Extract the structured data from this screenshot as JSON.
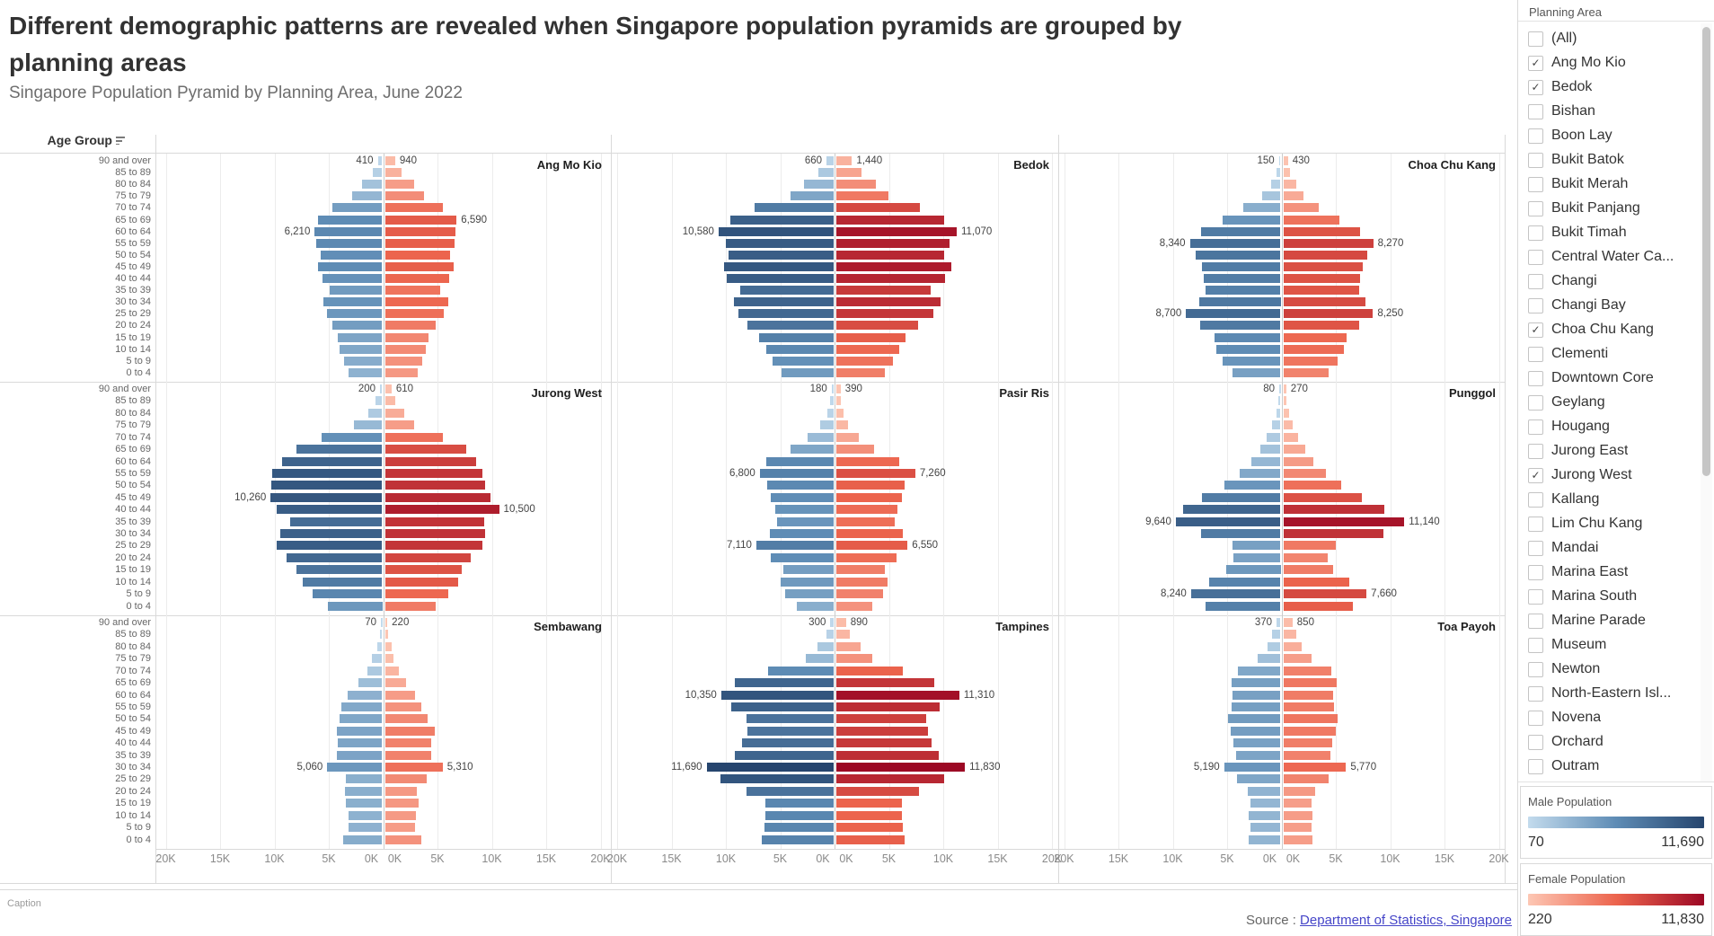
{
  "header": {
    "title": "Different demographic patterns are revealed when Singapore population pyramids are grouped by planning areas",
    "subtitle": "Singapore Population Pyramid by Planning Area, June 2022"
  },
  "caption": {
    "placeholder": "Caption",
    "source_prefix": "Source : ",
    "source_link": "Department of Statistics, Singapore"
  },
  "sidebar": {
    "filter": {
      "title": "Planning Area",
      "items": [
        {
          "label": "(All)",
          "checked": false
        },
        {
          "label": "Ang Mo Kio",
          "checked": true
        },
        {
          "label": "Bedok",
          "checked": true
        },
        {
          "label": "Bishan",
          "checked": false
        },
        {
          "label": "Boon Lay",
          "checked": false
        },
        {
          "label": "Bukit Batok",
          "checked": false
        },
        {
          "label": "Bukit Merah",
          "checked": false
        },
        {
          "label": "Bukit Panjang",
          "checked": false
        },
        {
          "label": "Bukit Timah",
          "checked": false
        },
        {
          "label": "Central Water Ca...",
          "checked": false
        },
        {
          "label": "Changi",
          "checked": false
        },
        {
          "label": "Changi Bay",
          "checked": false
        },
        {
          "label": "Choa Chu Kang",
          "checked": true
        },
        {
          "label": "Clementi",
          "checked": false
        },
        {
          "label": "Downtown Core",
          "checked": false
        },
        {
          "label": "Geylang",
          "checked": false
        },
        {
          "label": "Hougang",
          "checked": false
        },
        {
          "label": "Jurong East",
          "checked": false
        },
        {
          "label": "Jurong West",
          "checked": true
        },
        {
          "label": "Kallang",
          "checked": false
        },
        {
          "label": "Lim Chu Kang",
          "checked": false
        },
        {
          "label": "Mandai",
          "checked": false
        },
        {
          "label": "Marina East",
          "checked": false
        },
        {
          "label": "Marina South",
          "checked": false
        },
        {
          "label": "Marine Parade",
          "checked": false
        },
        {
          "label": "Museum",
          "checked": false
        },
        {
          "label": "Newton",
          "checked": false
        },
        {
          "label": "North-Eastern Isl...",
          "checked": false
        },
        {
          "label": "Novena",
          "checked": false
        },
        {
          "label": "Orchard",
          "checked": false
        },
        {
          "label": "Outram",
          "checked": false
        }
      ]
    },
    "legends": [
      {
        "title": "Male Population",
        "min": "70",
        "max": "11,690"
      },
      {
        "title": "Female Population",
        "min": "220",
        "max": "11,830"
      }
    ]
  },
  "chart_data": {
    "type": "bar",
    "subtype": "population-pyramid-small-multiples",
    "row_header": "Age Group",
    "age_groups": [
      "90 and over",
      "85 to 89",
      "80 to 84",
      "75 to 79",
      "70 to 74",
      "65 to 69",
      "60 to 64",
      "55 to 59",
      "50 to 54",
      "45 to 49",
      "40 to 44",
      "35 to 39",
      "30 to 34",
      "25 to 29",
      "20 to 24",
      "15 to 19",
      "10 to 14",
      "5 to 9",
      "0 to 4"
    ],
    "axis": {
      "left_ticks": [
        "0K",
        "5K",
        "10K",
        "15K",
        "20K"
      ],
      "right_ticks": [
        "0K",
        "5K",
        "10K",
        "15K",
        "20K"
      ],
      "max_value": 20000,
      "grid": true
    },
    "colors": {
      "male_stops": [
        "#c3dbed",
        "#5e8cb5",
        "#26456e"
      ],
      "female_stops": [
        "#fdc7b4",
        "#ec644d",
        "#9c0824"
      ],
      "male_range": [
        70,
        11690
      ],
      "female_range": [
        220,
        11830
      ]
    },
    "panels": [
      {
        "name": "Ang Mo Kio",
        "male": [
          410,
          900,
          1900,
          2800,
          4600,
          5900,
          6210,
          6100,
          5700,
          5900,
          5500,
          4800,
          5400,
          5100,
          4600,
          4100,
          3900,
          3500,
          3100
        ],
        "female": [
          940,
          1500,
          2700,
          3600,
          5300,
          6590,
          6500,
          6400,
          6000,
          6300,
          5900,
          5100,
          5800,
          5400,
          4700,
          4000,
          3800,
          3400,
          3000
        ],
        "labels": {
          "male": {
            "0": "410",
            "6": "6,210"
          },
          "female": {
            "0": "940",
            "5": "6,590"
          }
        }
      },
      {
        "name": "Bedok",
        "male": [
          660,
          1400,
          2700,
          4000,
          7300,
          9500,
          10580,
          9900,
          9700,
          10100,
          9800,
          8600,
          9200,
          8800,
          7900,
          6900,
          6200,
          5600,
          4800
        ],
        "female": [
          1440,
          2300,
          3600,
          4800,
          7700,
          9900,
          11070,
          10400,
          9900,
          10600,
          10000,
          8700,
          9600,
          8900,
          7500,
          6400,
          5800,
          5200,
          4500
        ],
        "labels": {
          "male": {
            "0": "660",
            "6": "10,580"
          },
          "female": {
            "0": "1,440",
            "6": "11,070"
          }
        }
      },
      {
        "name": "Choa Chu Kang",
        "male": [
          150,
          400,
          900,
          1700,
          3400,
          5300,
          7300,
          8340,
          7800,
          7200,
          7100,
          6900,
          7500,
          8700,
          7400,
          6100,
          5900,
          5300,
          4400
        ],
        "female": [
          430,
          600,
          1200,
          1900,
          3300,
          5200,
          7100,
          8270,
          7700,
          7300,
          7100,
          7000,
          7600,
          8250,
          7000,
          5800,
          5600,
          5000,
          4200
        ],
        "labels": {
          "male": {
            "0": "150",
            "7": "8,340",
            "13": "8,700"
          },
          "female": {
            "0": "430",
            "7": "8,270",
            "13": "8,250"
          }
        }
      },
      {
        "name": "Jurong West",
        "male": [
          200,
          600,
          1300,
          2600,
          5600,
          7900,
          9200,
          10100,
          10200,
          10260,
          9700,
          8500,
          9400,
          9700,
          8800,
          7900,
          7300,
          6400,
          5000
        ],
        "female": [
          610,
          950,
          1800,
          2700,
          5300,
          7500,
          8400,
          9000,
          9200,
          9700,
          10500,
          9100,
          9200,
          9000,
          7900,
          7100,
          6700,
          5800,
          4700
        ],
        "labels": {
          "male": {
            "0": "200",
            "9": "10,260"
          },
          "female": {
            "0": "610",
            "10": "10,500"
          }
        }
      },
      {
        "name": "Pasir Ris",
        "male": [
          180,
          300,
          600,
          1200,
          2400,
          4000,
          6200,
          6800,
          6100,
          5800,
          5400,
          5200,
          5900,
          7110,
          5800,
          4600,
          4900,
          4500,
          3400
        ],
        "female": [
          390,
          400,
          700,
          1100,
          2100,
          3500,
          5800,
          7260,
          6300,
          6000,
          5600,
          5400,
          6100,
          6550,
          5500,
          4500,
          4700,
          4300,
          3300
        ],
        "labels": {
          "male": {
            "0": "180",
            "7": "6,800",
            "13": "7,110"
          },
          "female": {
            "0": "390",
            "7": "7,260",
            "13": "6,550"
          }
        }
      },
      {
        "name": "Punggol",
        "male": [
          80,
          200,
          400,
          800,
          1300,
          1900,
          2700,
          3800,
          5200,
          7200,
          9000,
          9640,
          7300,
          4400,
          4300,
          5000,
          6600,
          8240,
          6900
        ],
        "female": [
          270,
          300,
          500,
          900,
          1400,
          2000,
          2800,
          3900,
          5300,
          7200,
          9300,
          11140,
          9200,
          4800,
          4100,
          4600,
          6100,
          7660,
          6400
        ],
        "labels": {
          "male": {
            "0": "80",
            "11": "9,640",
            "17": "8,240"
          },
          "female": {
            "0": "270",
            "11": "11,140",
            "17": "7,660"
          }
        }
      },
      {
        "name": "Sembawang",
        "male": [
          70,
          210,
          430,
          940,
          1370,
          2230,
          3200,
          3800,
          3900,
          4160,
          4100,
          4160,
          5060,
          3340,
          3400,
          3340,
          3100,
          3130,
          3560
        ],
        "female": [
          220,
          250,
          590,
          760,
          1270,
          1910,
          2760,
          3310,
          3910,
          4550,
          4250,
          4250,
          5310,
          3820,
          2970,
          3060,
          2850,
          2760,
          3310
        ],
        "labels": {
          "male": {
            "0": "70",
            "12": "5,060"
          },
          "female": {
            "0": "220",
            "12": "5,310"
          }
        }
      },
      {
        "name": "Tampines",
        "male": [
          300,
          700,
          1500,
          2600,
          6000,
          9100,
          10350,
          9400,
          8000,
          7900,
          8400,
          9100,
          11690,
          10400,
          8000,
          6300,
          6300,
          6400,
          6600
        ],
        "female": [
          890,
          1200,
          2200,
          3300,
          6100,
          9000,
          11310,
          9500,
          8300,
          8400,
          8800,
          9400,
          11830,
          9900,
          7600,
          6000,
          6000,
          6100,
          6300
        ],
        "labels": {
          "male": {
            "0": "300",
            "6": "10,350",
            "12": "11,690"
          },
          "female": {
            "0": "890",
            "6": "11,310",
            "12": "11,830"
          }
        }
      },
      {
        "name": "Toa Payoh",
        "male": [
          370,
          800,
          1200,
          2100,
          3900,
          4500,
          4400,
          4500,
          4800,
          4600,
          4300,
          4100,
          5190,
          4000,
          3000,
          2800,
          2900,
          2800,
          2900
        ],
        "female": [
          850,
          1200,
          1700,
          2600,
          4400,
          4900,
          4600,
          4700,
          5000,
          4800,
          4500,
          4300,
          5770,
          4200,
          2900,
          2600,
          2700,
          2600,
          2700
        ],
        "labels": {
          "male": {
            "0": "370",
            "12": "5,190"
          },
          "female": {
            "0": "850",
            "12": "5,770"
          }
        }
      }
    ]
  }
}
